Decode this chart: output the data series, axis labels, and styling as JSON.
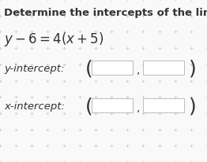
{
  "title": "Determine the intercepts of the line.",
  "equation": "$y - 6 = 4(x + 5)$",
  "y_label": "y-intercept:",
  "x_label": "x-intercept:",
  "background_color": "#f9f9f9",
  "grid_color": "#c8c8c8",
  "text_color": "#333333",
  "box_edge_color": "#bbbbbb",
  "box_face_color": "#ffffff",
  "title_fontsize": 9.5,
  "label_fontsize": 9.5,
  "eq_fontsize": 12,
  "paren_fontsize": 18,
  "grid_rows": 10,
  "grid_cols": 13
}
